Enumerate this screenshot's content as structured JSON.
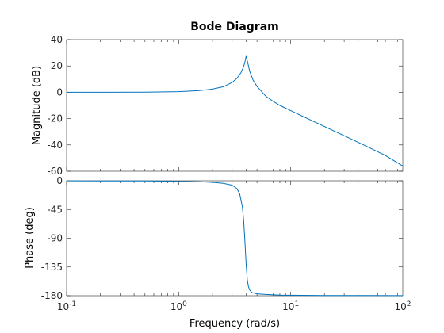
{
  "chart_data": {
    "type": "line",
    "title": "Bode Diagram",
    "xlabel": "Frequency  (rad/s)",
    "x_scale": "log",
    "xlim": [
      0.1,
      100
    ],
    "x_ticks": [
      {
        "value": 0.1,
        "base": "10",
        "exp": "-1"
      },
      {
        "value": 1,
        "base": "10",
        "exp": "0"
      },
      {
        "value": 10,
        "base": "10",
        "exp": "1"
      },
      {
        "value": 100,
        "base": "10",
        "exp": "2"
      }
    ],
    "grid": false,
    "line_color": "#0072bd",
    "panels": [
      {
        "name": "magnitude",
        "ylabel": "Magnitude (dB)",
        "ylim": [
          -60,
          40
        ],
        "yticks": [
          40,
          20,
          0,
          -20,
          -40,
          -60
        ],
        "x": [
          0.1,
          0.2,
          0.5,
          1,
          1.5,
          2,
          2.5,
          3,
          3.3,
          3.6,
          3.8,
          3.9,
          4.0,
          4.1,
          4.3,
          4.6,
          5,
          6,
          7,
          8,
          10,
          15,
          20,
          30,
          50,
          70,
          100
        ],
        "y": [
          0,
          0,
          0.1,
          0.5,
          1.2,
          2.4,
          4.2,
          7.5,
          10.5,
          15,
          19.5,
          23,
          27.5,
          24,
          16,
          9.5,
          4.5,
          -3,
          -7,
          -10,
          -14,
          -21,
          -26,
          -33,
          -42,
          -48,
          -56
        ]
      },
      {
        "name": "phase",
        "ylabel": "Phase (deg)",
        "ylim": [
          -180,
          0
        ],
        "yticks": [
          0,
          -45,
          -90,
          -135,
          -180
        ],
        "x": [
          0.1,
          0.2,
          0.5,
          1,
          1.5,
          2,
          2.5,
          3,
          3.3,
          3.5,
          3.7,
          3.8,
          3.9,
          4.0,
          4.1,
          4.2,
          4.3,
          4.5,
          5,
          6,
          8,
          10,
          20,
          50,
          100
        ],
        "y": [
          -0.1,
          -0.2,
          -0.4,
          -0.9,
          -1.5,
          -2.5,
          -4,
          -7,
          -12,
          -20,
          -40,
          -62,
          -95,
          -130,
          -155,
          -166,
          -171,
          -175,
          -177,
          -178,
          -179,
          -179.3,
          -179.6,
          -179.8,
          -179.9
        ]
      }
    ]
  }
}
